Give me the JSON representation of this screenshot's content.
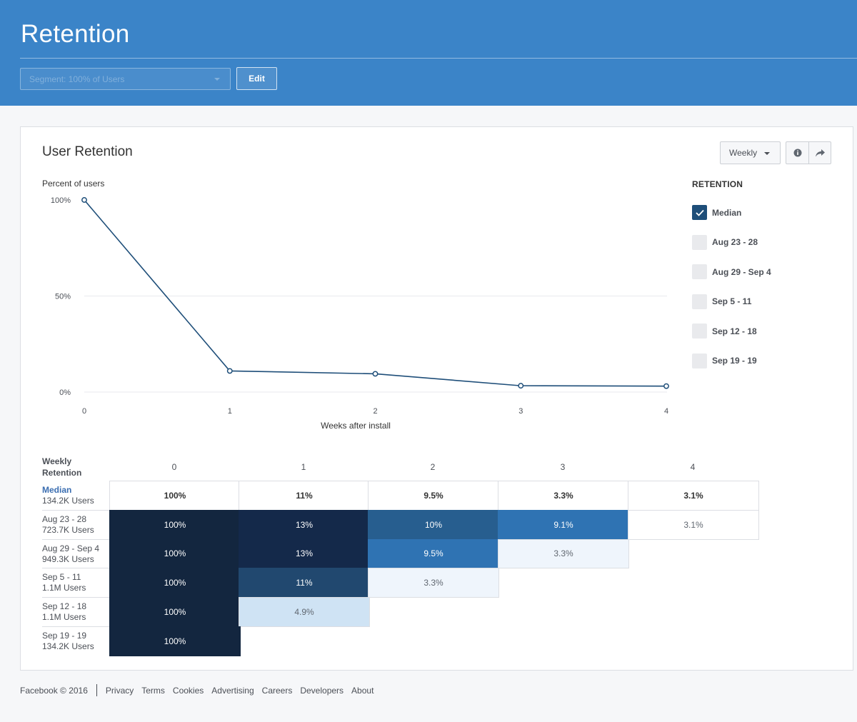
{
  "header": {
    "title": "Retention",
    "segment_placeholder": "Segment: 100% of Users",
    "edit_label": "Edit"
  },
  "card": {
    "title": "User Retention",
    "period_label": "Weekly"
  },
  "chart_data": {
    "type": "line",
    "ylabel": "Percent of users",
    "xlabel": "Weeks after install",
    "x": [
      0,
      1,
      2,
      3,
      4
    ],
    "ylim": [
      0,
      100
    ],
    "yticks": [
      "100%",
      "50%",
      "0%"
    ],
    "xticks": [
      "0",
      "1",
      "2",
      "3",
      "4"
    ],
    "series": [
      {
        "name": "Median",
        "values": [
          100,
          11,
          9.5,
          3.3,
          3.1
        ],
        "color": "#1e4e79"
      }
    ],
    "grid": true
  },
  "legend": {
    "title": "RETENTION",
    "items": [
      {
        "label": "Median",
        "checked": true
      },
      {
        "label": "Aug 23 - 28",
        "checked": false
      },
      {
        "label": "Aug 29 - Sep 4",
        "checked": false
      },
      {
        "label": "Sep 5 - 11",
        "checked": false
      },
      {
        "label": "Sep 12 - 18",
        "checked": false
      },
      {
        "label": "Sep 19 - 19",
        "checked": false
      }
    ]
  },
  "table": {
    "header_line1": "Weekly",
    "header_line2": "Retention",
    "columns": [
      "0",
      "1",
      "2",
      "3",
      "4"
    ],
    "rows": [
      {
        "name": "Median",
        "users": "134.2K Users",
        "median": true,
        "cells": [
          "100%",
          "11%",
          "9.5%",
          "3.3%",
          "3.1%"
        ]
      },
      {
        "name": "Aug 23 - 28",
        "users": "723.7K Users",
        "cells": [
          "100%",
          "13%",
          "10%",
          "9.1%",
          "3.1%"
        ]
      },
      {
        "name": "Aug 29 - Sep 4",
        "users": "949.3K Users",
        "cells": [
          "100%",
          "13%",
          "9.5%",
          "3.3%"
        ]
      },
      {
        "name": "Sep 5 - 11",
        "users": "1.1M Users",
        "cells": [
          "100%",
          "11%",
          "3.3%"
        ]
      },
      {
        "name": "Sep 12 - 18",
        "users": "1.1M Users",
        "cells": [
          "100%",
          "4.9%"
        ]
      },
      {
        "name": "Sep 19 - 19",
        "users": "134.2K Users",
        "cells": [
          "100%"
        ]
      }
    ],
    "cell_colors": {
      "100": "#13263f",
      "13": "#14294a",
      "11": "#21486f",
      "10": "#275e8f",
      "9.5": "#2f73b3",
      "9.1": "#2f73b3",
      "4.9": "#cfe3f4",
      "3.3": "#eff5fc",
      "3.1": "#ffffff"
    }
  },
  "footer": {
    "copyright": "Facebook © 2016",
    "links": [
      "Privacy",
      "Terms",
      "Cookies",
      "Advertising",
      "Careers",
      "Developers",
      "About"
    ]
  }
}
